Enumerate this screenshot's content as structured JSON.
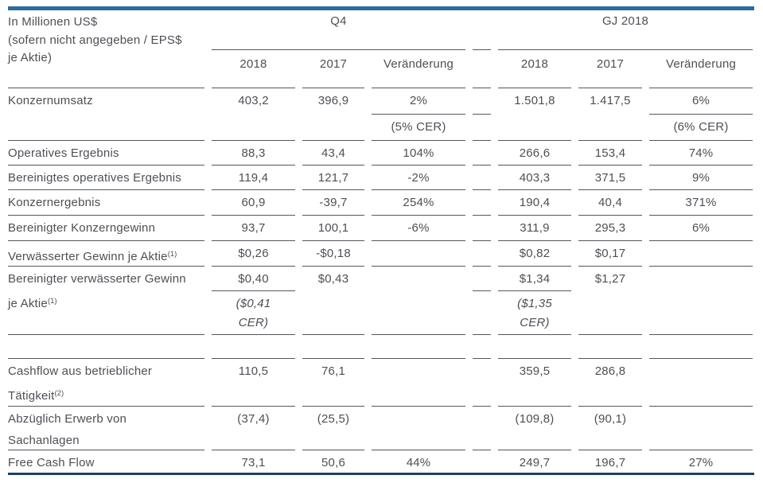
{
  "table": {
    "unit_note": "In Millionen US$\n(sofern nicht angegeben / EPS$\nje Aktie)",
    "column_groups": {
      "q4": "Q4",
      "gj": "GJ 2018"
    },
    "sub_columns": {
      "q4_2018": "2018",
      "q4_2017": "2017",
      "q4_change": "Veränderung",
      "gj_2018": "2018",
      "gj_2017": "2017",
      "gj_change": "Veränderung"
    },
    "rows": [
      {
        "label": "Konzernumsatz",
        "q4_2018": "403,2",
        "q4_2017": "396,9",
        "q4_change": "2%",
        "q4_change_cer": "(5% CER)",
        "gj_2018": "1.501,8",
        "gj_2017": "1.417,5",
        "gj_change": "6%",
        "gj_change_cer": "(6% CER)"
      },
      {
        "label": "Operatives Ergebnis",
        "q4_2018": "88,3",
        "q4_2017": "43,4",
        "q4_change": "104%",
        "gj_2018": "266,6",
        "gj_2017": "153,4",
        "gj_change": "74%"
      },
      {
        "label": "Bereinigtes operatives Ergebnis",
        "q4_2018": "119,4",
        "q4_2017": "121,7",
        "q4_change": "-2%",
        "gj_2018": "403,3",
        "gj_2017": "371,5",
        "gj_change": "9%"
      },
      {
        "label": "Konzernergebnis",
        "q4_2018": "60,9",
        "q4_2017": "-39,7",
        "q4_change": "254%",
        "gj_2018": "190,4",
        "gj_2017": "40,4",
        "gj_change": "371%"
      },
      {
        "label": "Bereinigter Konzerngewinn",
        "q4_2018": "93,7",
        "q4_2017": "100,1",
        "q4_change": "-6%",
        "gj_2018": "311,9",
        "gj_2017": "295,3",
        "gj_change": "6%"
      },
      {
        "label": "Verwässerter Gewinn je Aktie",
        "label_sup": "(1)",
        "q4_2018": "$0,26",
        "q4_2017": "-$0,18",
        "q4_change": "",
        "gj_2018": "$0,82",
        "gj_2017": "$0,17",
        "gj_change": ""
      },
      {
        "label": "Bereinigter verwässerter Gewinn\nje Aktie",
        "label_sup": "(1)",
        "q4_2018": "$0,40",
        "q4_2018_cer": "($0,41\nCER)",
        "q4_2017": "$0,43",
        "q4_change": "",
        "gj_2018": "$1,34",
        "gj_2018_cer": "($1,35\nCER)",
        "gj_2017": "$1,27",
        "gj_change": ""
      },
      {
        "label": "Cashflow aus betrieblicher\nTätigkeit",
        "label_sup": "(2)",
        "q4_2018": "110,5",
        "q4_2017": "76,1",
        "q4_change": "",
        "gj_2018": "359,5",
        "gj_2017": "286,8",
        "gj_change": ""
      },
      {
        "label": "Abzüglich Erwerb von\nSachanlagen",
        "q4_2018": "(37,4)",
        "q4_2017": "(25,5)",
        "q4_change": "",
        "gj_2018": "(109,8)",
        "gj_2017": "(90,1)",
        "gj_change": ""
      },
      {
        "label": "Free Cash Flow",
        "q4_2018": "73,1",
        "q4_2017": "50,6",
        "q4_change": "44%",
        "gj_2018": "249,7",
        "gj_2017": "196,7",
        "gj_change": "27%"
      }
    ]
  },
  "colors": {
    "top_bar": "#2d6b9c",
    "bottom_bar": "#20405e",
    "text": "#4c5055",
    "rule_line": "#54575b"
  }
}
